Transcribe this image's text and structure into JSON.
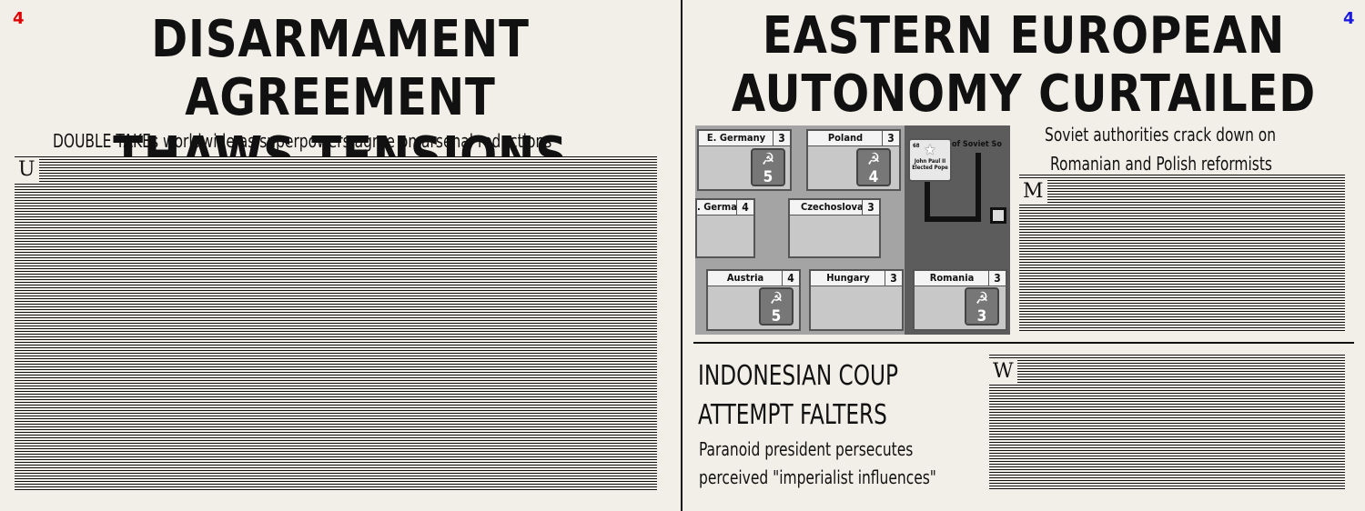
{
  "left_page": {
    "page_number": "4",
    "headline_line1": "DISARMAMENT AGREEMENT",
    "headline_line2": "THAWS TENSIONS",
    "subheadline": "DOUBLE TAKEs worldwide as superpowers agree on arsenal reductions",
    "drop_cap": "U"
  },
  "right_page": {
    "page_number": "4",
    "headline_line1": "EASTERN EUROPEAN",
    "headline_line2": "AUTONOMY CURTAILED",
    "subheadline_line1": "Soviet authorities crack down on",
    "subheadline_line2": "Romanian and Polish reformists",
    "drop_cap": "M",
    "map": {
      "region_label": "of Soviet So",
      "countries": [
        {
          "name": "E. Germany",
          "stability": "3",
          "influence": "5"
        },
        {
          "name": "Poland",
          "stability": "3",
          "influence": "4"
        },
        {
          "name": ". Germany",
          "stability": "4",
          "influence": ""
        },
        {
          "name": "Czechoslovakia",
          "stability": "3",
          "influence": ""
        },
        {
          "name": "Austria",
          "stability": "4",
          "influence": "5"
        },
        {
          "name": "Hungary",
          "stability": "3",
          "influence": ""
        },
        {
          "name": "Romania",
          "stability": "3",
          "influence": "3"
        }
      ],
      "event_card": {
        "number": "68",
        "title_line1": "John Paul II",
        "title_line2": "Elected Pope"
      },
      "token_symbol": "☭"
    },
    "story2": {
      "headline_line1": "INDONESIAN COUP",
      "headline_line2": "ATTEMPT FALTERS",
      "sub_line1": "Paranoid president persecutes",
      "sub_line2": "perceived \"imperialist influences\"",
      "drop_cap": "W"
    }
  },
  "colors": {
    "page_number_left": "#e00000",
    "page_number_right": "#1a1ae0",
    "paper": "#f2efe8"
  }
}
